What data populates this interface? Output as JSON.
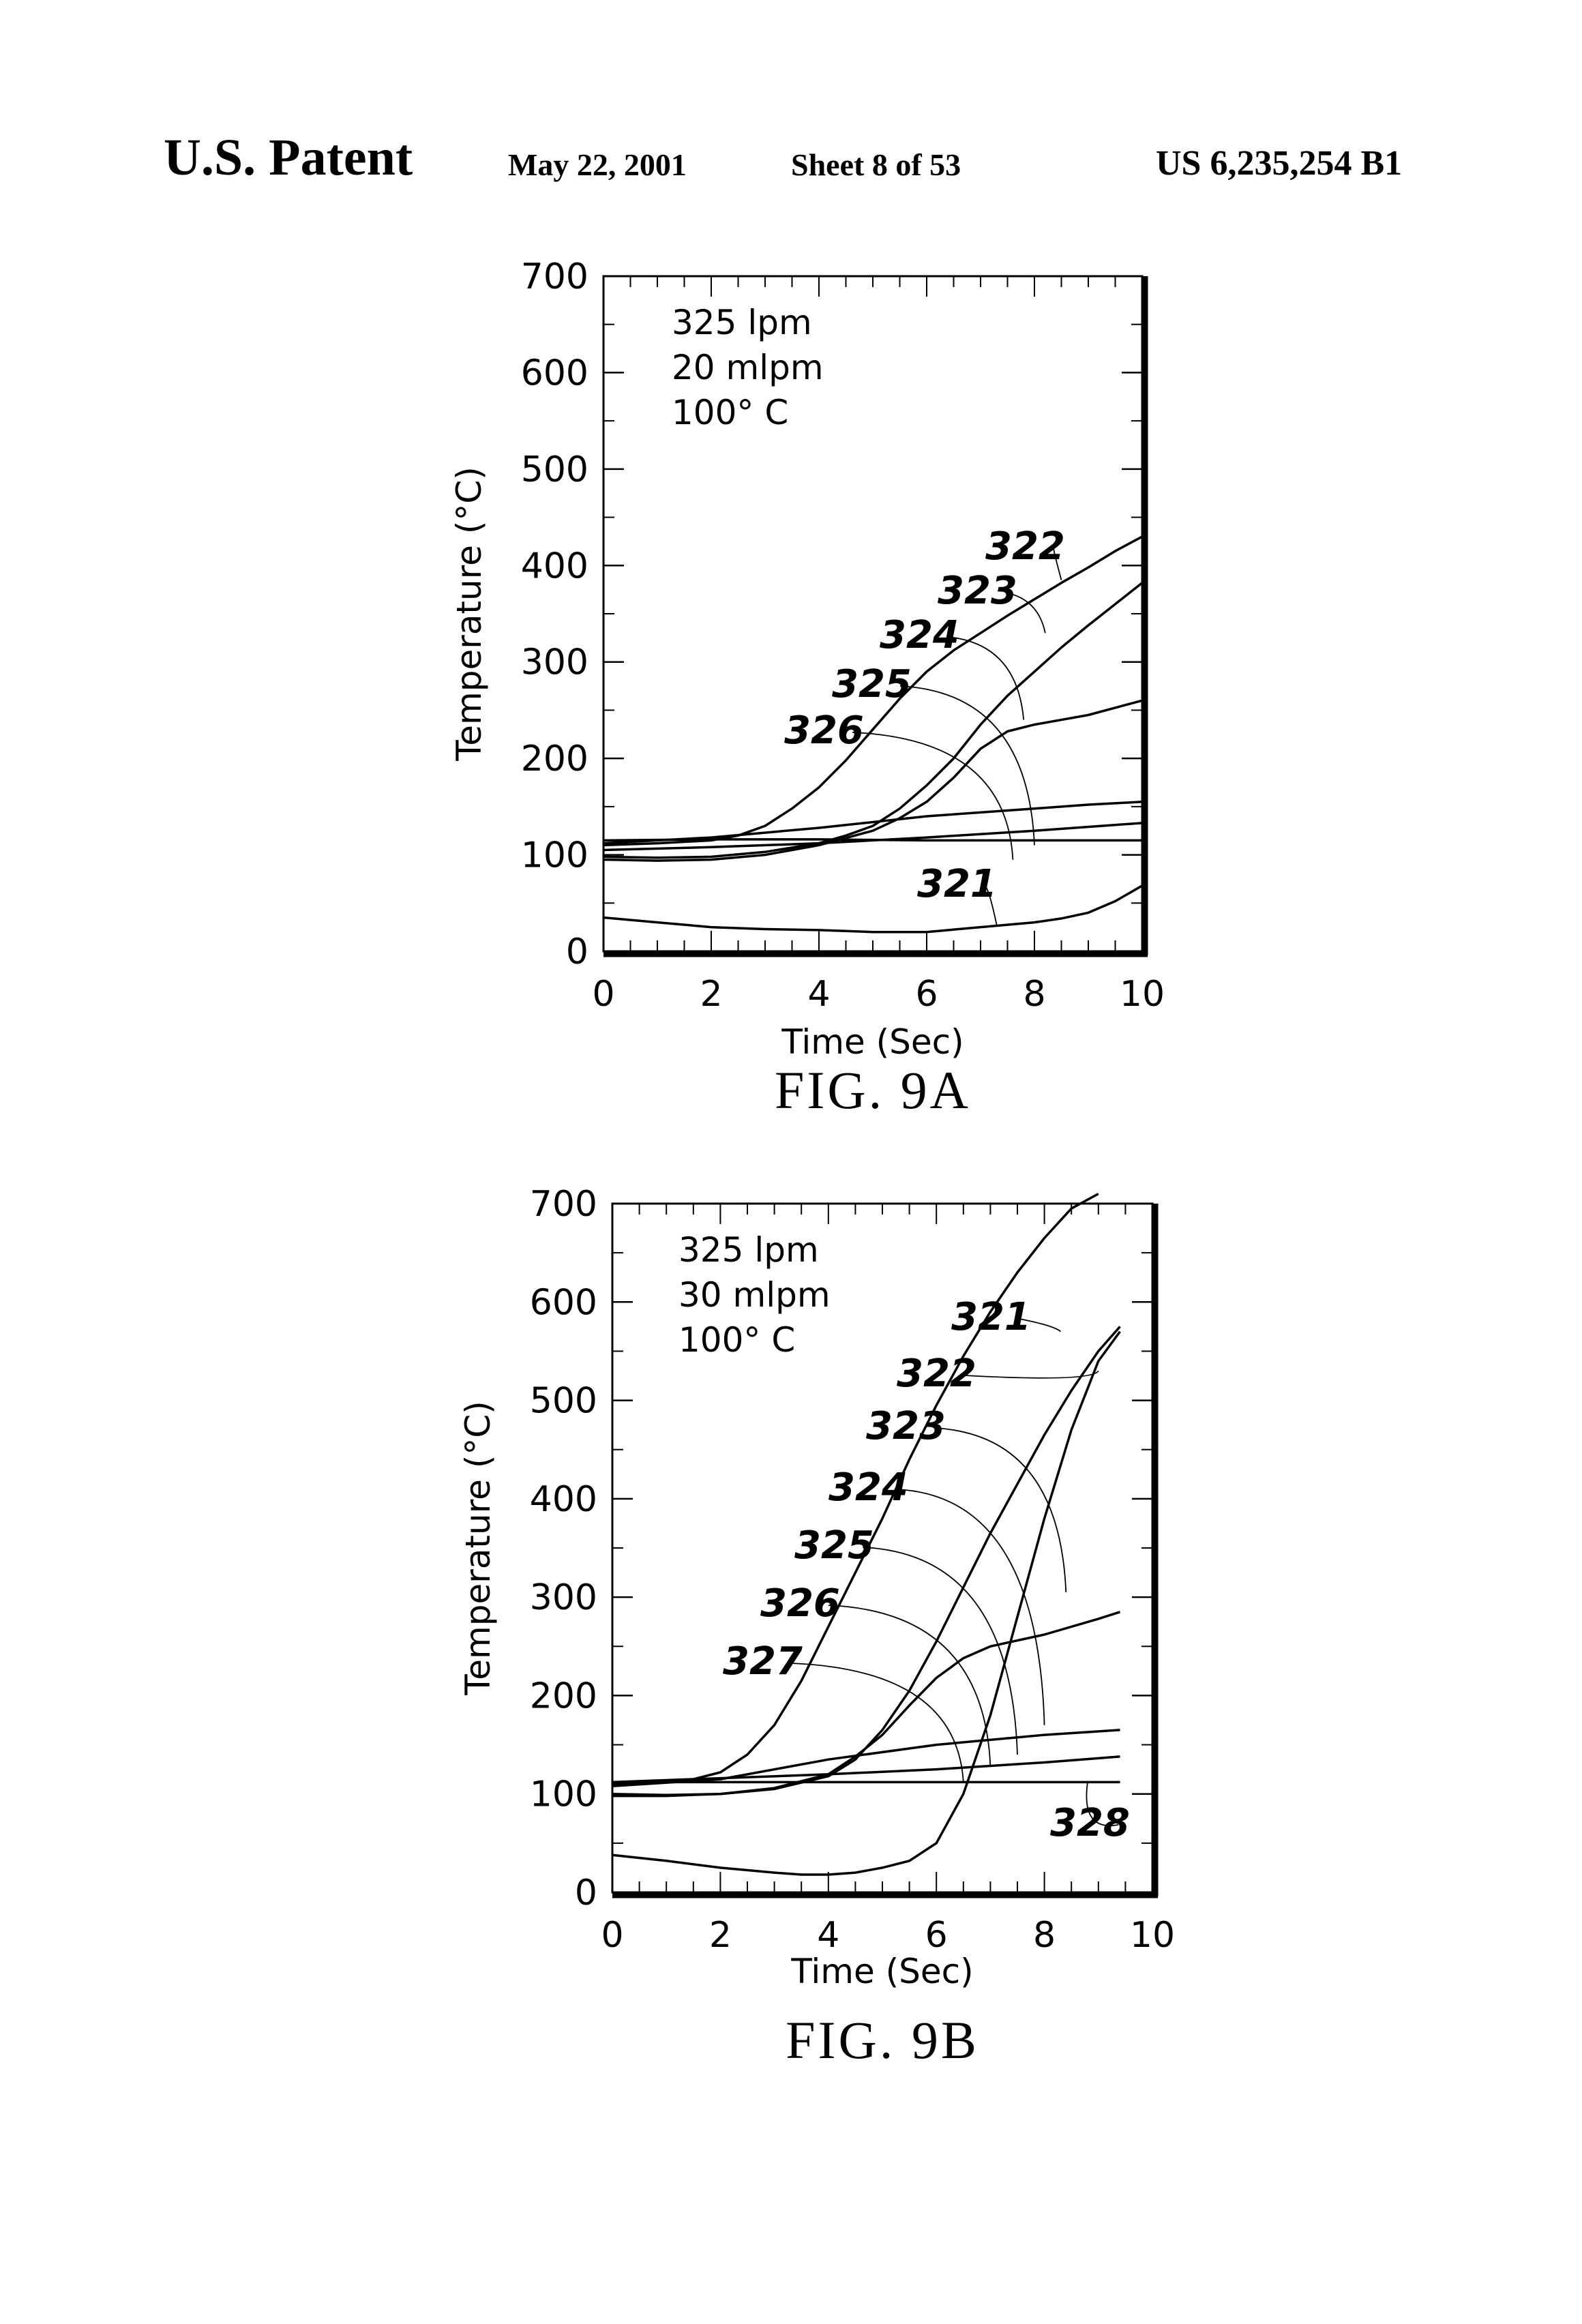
{
  "header": {
    "title": "U.S. Patent",
    "date": "May 22, 2001",
    "sheet": "Sheet 8 of 53",
    "patent_number": "US 6,235,254 B1"
  },
  "chart_data": [
    {
      "type": "line",
      "caption": "FIG. 9A",
      "xlabel": "Time (Sec)",
      "ylabel": "Temperature (°C)",
      "xlim": [
        0,
        10
      ],
      "ylim": [
        0,
        700
      ],
      "xticks": [
        "0",
        "2",
        "4",
        "6",
        "8",
        "10"
      ],
      "yticks": [
        "0",
        "100",
        "200",
        "300",
        "400",
        "500",
        "600",
        "700"
      ],
      "annotation": [
        "325 lpm",
        "20 mlpm",
        "100° C"
      ],
      "series": [
        {
          "name": "322",
          "x": [
            0,
            1,
            2,
            2.5,
            3,
            3.5,
            4,
            4.5,
            5,
            5.5,
            6,
            6.5,
            7,
            7.5,
            8,
            8.5,
            9,
            9.5,
            10
          ],
          "y": [
            110,
            112,
            115,
            120,
            130,
            148,
            170,
            198,
            230,
            262,
            290,
            312,
            330,
            348,
            365,
            382,
            398,
            415,
            430
          ]
        },
        {
          "name": "323",
          "x": [
            0,
            1,
            2,
            3,
            4,
            4.5,
            5,
            5.5,
            6,
            6.5,
            7,
            7.5,
            8,
            8.5,
            9,
            9.5,
            10
          ],
          "y": [
            98,
            97,
            98,
            103,
            112,
            120,
            130,
            148,
            172,
            200,
            235,
            265,
            290,
            315,
            338,
            360,
            382
          ]
        },
        {
          "name": "324",
          "x": [
            0,
            1,
            2,
            3,
            4,
            5,
            5.5,
            6,
            6.5,
            7,
            7.5,
            8,
            9,
            10
          ],
          "y": [
            95,
            94,
            95,
            100,
            110,
            125,
            138,
            155,
            180,
            210,
            228,
            235,
            245,
            260
          ]
        },
        {
          "name": "325",
          "x": [
            0,
            2,
            4,
            6,
            8,
            9,
            10
          ],
          "y": [
            112,
            118,
            128,
            140,
            148,
            152,
            155
          ]
        },
        {
          "name": "326",
          "x": [
            0,
            2,
            4,
            6,
            8,
            10
          ],
          "y": [
            105,
            108,
            112,
            118,
            125,
            133
          ]
        },
        {
          "name": "321",
          "x": [
            0,
            1,
            2,
            3,
            4,
            5,
            5.5,
            6,
            7,
            8,
            8.5,
            9,
            9.5,
            10
          ],
          "y": [
            35,
            30,
            25,
            23,
            22,
            20,
            20,
            20,
            25,
            30,
            34,
            40,
            52,
            68
          ]
        },
        {
          "name": "",
          "x": [
            0,
            2,
            4,
            6,
            8,
            10
          ],
          "y": [
            115,
            116,
            116,
            115,
            115,
            115
          ]
        }
      ],
      "labels": [
        "322",
        "323",
        "324",
        "325",
        "326",
        "321"
      ]
    },
    {
      "type": "line",
      "caption": "FIG. 9B",
      "xlabel": "Time (Sec)",
      "ylabel": "Temperature (°C)",
      "xlim": [
        0,
        10
      ],
      "ylim": [
        0,
        700
      ],
      "xticks": [
        "0",
        "2",
        "4",
        "6",
        "8",
        "10"
      ],
      "yticks": [
        "0",
        "100",
        "200",
        "300",
        "400",
        "500",
        "600",
        "700"
      ],
      "annotation": [
        "325 lpm",
        "30 mlpm",
        "100° C"
      ],
      "series": [
        {
          "name": "321",
          "x": [
            0,
            1,
            1.5,
            2,
            2.5,
            3,
            3.5,
            4,
            4.5,
            5,
            5.5,
            6,
            6.5,
            7,
            7.5,
            8,
            8.5,
            9
          ],
          "y": [
            110,
            112,
            115,
            122,
            140,
            170,
            215,
            270,
            325,
            380,
            440,
            495,
            545,
            590,
            630,
            665,
            695,
            710
          ]
        },
        {
          "name": "322",
          "x": [
            0,
            1,
            2,
            3,
            4,
            4.5,
            5,
            5.5,
            6,
            6.5,
            7,
            7.5,
            8,
            8.5,
            9,
            9.4
          ],
          "y": [
            100,
            99,
            100,
            105,
            118,
            135,
            165,
            205,
            255,
            310,
            365,
            415,
            465,
            510,
            550,
            575
          ]
        },
        {
          "name": "323",
          "x": [
            0,
            1,
            2,
            3,
            4,
            4.5,
            5,
            5.5,
            6,
            6.5,
            7,
            8,
            9,
            9.4
          ],
          "y": [
            98,
            98,
            100,
            106,
            120,
            138,
            160,
            190,
            218,
            238,
            250,
            262,
            278,
            285
          ]
        },
        {
          "name": "324",
          "x": [
            0,
            2,
            4,
            6,
            8,
            9.4
          ],
          "y": [
            108,
            115,
            135,
            150,
            160,
            165
          ]
        },
        {
          "name": "325",
          "x": [
            0,
            2,
            4,
            6,
            8,
            9.4
          ],
          "y": [
            112,
            116,
            120,
            125,
            132,
            138
          ]
        },
        {
          "name": "328",
          "x": [
            0,
            1,
            2,
            3,
            3.5,
            4,
            4.5,
            5,
            5.5,
            6,
            6.5,
            7,
            7.5,
            8,
            8.5,
            9,
            9.4
          ],
          "y": [
            38,
            32,
            25,
            20,
            18,
            18,
            20,
            25,
            32,
            50,
            100,
            180,
            280,
            380,
            470,
            540,
            570
          ]
        },
        {
          "name": "",
          "x": [
            0,
            2,
            4,
            6,
            8,
            9.4
          ],
          "y": [
            112,
            112,
            112,
            112,
            112,
            112
          ]
        }
      ],
      "labels": [
        "321",
        "322",
        "323",
        "324",
        "325",
        "326",
        "327",
        "328"
      ]
    }
  ]
}
